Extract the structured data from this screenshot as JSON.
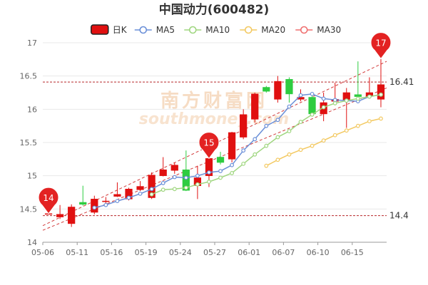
{
  "chart_data": {
    "type": "candlestick",
    "title": "中国动力(600482)",
    "legend": [
      {
        "name": "日K",
        "color": "#e01010",
        "style": "candle"
      },
      {
        "name": "MA5",
        "color": "#6a8fd8",
        "style": "line"
      },
      {
        "name": "MA10",
        "color": "#9fd67f",
        "style": "line"
      },
      {
        "name": "MA20",
        "color": "#f3c961",
        "style": "line"
      },
      {
        "name": "MA30",
        "color": "#ef6f6f",
        "style": "line"
      }
    ],
    "legend_position": "top-center",
    "watermark": "南方财富网 southmoney.com",
    "ylim": [
      14,
      17
    ],
    "yticks": [
      14,
      14.5,
      15,
      15.5,
      16,
      16.5,
      17
    ],
    "xtick_labels": [
      "05-06",
      "05-11",
      "05-16",
      "05-19",
      "05-24",
      "05-27",
      "06-01",
      "06-07",
      "06-10",
      "06-15"
    ],
    "xtick_positions": [
      0,
      3,
      6,
      9,
      12,
      15,
      18,
      21,
      24,
      27
    ],
    "grid": true,
    "up_color": "#e01010",
    "down_color": "#2ecc40",
    "candles": [
      {
        "o": 14.43,
        "c": 14.43,
        "h": 14.47,
        "l": 14.42
      },
      {
        "o": 14.38,
        "c": 14.42,
        "h": 14.56,
        "l": 14.35
      },
      {
        "o": 14.28,
        "c": 14.53,
        "h": 14.57,
        "l": 14.23
      },
      {
        "o": 14.6,
        "c": 14.57,
        "h": 14.85,
        "l": 14.55
      },
      {
        "o": 14.45,
        "c": 14.65,
        "h": 14.7,
        "l": 14.42
      },
      {
        "o": 14.61,
        "c": 14.62,
        "h": 14.68,
        "l": 14.58
      },
      {
        "o": 14.69,
        "c": 14.72,
        "h": 14.9,
        "l": 14.68
      },
      {
        "o": 14.65,
        "c": 14.8,
        "h": 14.82,
        "l": 14.63
      },
      {
        "o": 14.79,
        "c": 14.84,
        "h": 14.92,
        "l": 14.77
      },
      {
        "o": 14.67,
        "c": 15.01,
        "h": 15.05,
        "l": 14.65
      },
      {
        "o": 15.0,
        "c": 15.09,
        "h": 15.28,
        "l": 14.99
      },
      {
        "o": 15.08,
        "c": 15.16,
        "h": 15.2,
        "l": 15.03
      },
      {
        "o": 15.09,
        "c": 14.78,
        "h": 15.38,
        "l": 14.77
      },
      {
        "o": 14.85,
        "c": 14.97,
        "h": 15.15,
        "l": 14.65
      },
      {
        "o": 15.0,
        "c": 15.26,
        "h": 15.28,
        "l": 14.83
      },
      {
        "o": 15.28,
        "c": 15.2,
        "h": 15.36,
        "l": 15.17
      },
      {
        "o": 15.25,
        "c": 15.65,
        "h": 15.66,
        "l": 15.2
      },
      {
        "o": 15.58,
        "c": 15.92,
        "h": 16.0,
        "l": 15.55
      },
      {
        "o": 15.85,
        "c": 16.23,
        "h": 16.25,
        "l": 15.8
      },
      {
        "o": 16.33,
        "c": 16.27,
        "h": 16.35,
        "l": 16.25
      },
      {
        "o": 16.15,
        "c": 16.42,
        "h": 16.5,
        "l": 16.1
      },
      {
        "o": 16.45,
        "c": 16.23,
        "h": 16.48,
        "l": 16.1
      },
      {
        "o": 16.15,
        "c": 16.18,
        "h": 16.3,
        "l": 16.12
      },
      {
        "o": 16.18,
        "c": 15.93,
        "h": 16.22,
        "l": 15.9
      },
      {
        "o": 15.93,
        "c": 16.1,
        "h": 16.25,
        "l": 15.82
      },
      {
        "o": 16.12,
        "c": 16.15,
        "h": 16.4,
        "l": 16.1
      },
      {
        "o": 16.13,
        "c": 16.25,
        "h": 16.32,
        "l": 15.72
      },
      {
        "o": 16.22,
        "c": 16.19,
        "h": 16.72,
        "l": 16.15
      },
      {
        "o": 16.2,
        "c": 16.25,
        "h": 16.48,
        "l": 16.18
      },
      {
        "o": 16.15,
        "c": 16.37,
        "h": 16.76,
        "l": 16.03
      }
    ],
    "ma5": [
      null,
      null,
      null,
      null,
      14.52,
      14.56,
      14.62,
      14.67,
      14.73,
      14.8,
      14.89,
      14.98,
      14.97,
      15.0,
      15.05,
      15.07,
      15.16,
      15.38,
      15.55,
      15.75,
      15.84,
      16.04,
      16.21,
      16.23,
      16.16,
      16.14,
      16.13,
      16.12,
      16.19,
      16.22
    ],
    "ma10": [
      null,
      null,
      null,
      null,
      null,
      null,
      null,
      null,
      null,
      14.72,
      14.79,
      14.8,
      14.82,
      14.87,
      14.91,
      14.97,
      15.04,
      15.18,
      15.32,
      15.45,
      15.58,
      15.67,
      15.81,
      15.92,
      16.03,
      16.09,
      16.13,
      16.16,
      16.19,
      16.22
    ],
    "ma20": [
      null,
      null,
      null,
      null,
      null,
      null,
      null,
      null,
      null,
      null,
      null,
      null,
      null,
      null,
      null,
      null,
      null,
      null,
      null,
      15.15,
      15.24,
      15.32,
      15.39,
      15.45,
      15.53,
      15.61,
      15.68,
      15.75,
      15.82,
      15.86
    ],
    "annotations": {
      "pins": [
        {
          "label": "14",
          "index": 0,
          "value": 14.43
        },
        {
          "label": "15",
          "index": 14,
          "value": 15.26
        },
        {
          "label": "17",
          "index": 29,
          "value": 16.76
        }
      ],
      "max_line": {
        "label": "16.41",
        "value": 16.41
      },
      "min_line": {
        "label": "14.4",
        "value": 14.4
      },
      "trend_lines": [
        {
          "from_index": 0,
          "from_value": 14.25,
          "to_index": 29,
          "to_value": 16.72
        },
        {
          "from_index": 0,
          "from_value": 14.18,
          "to_index": 29,
          "to_value": 16.32
        }
      ]
    }
  }
}
